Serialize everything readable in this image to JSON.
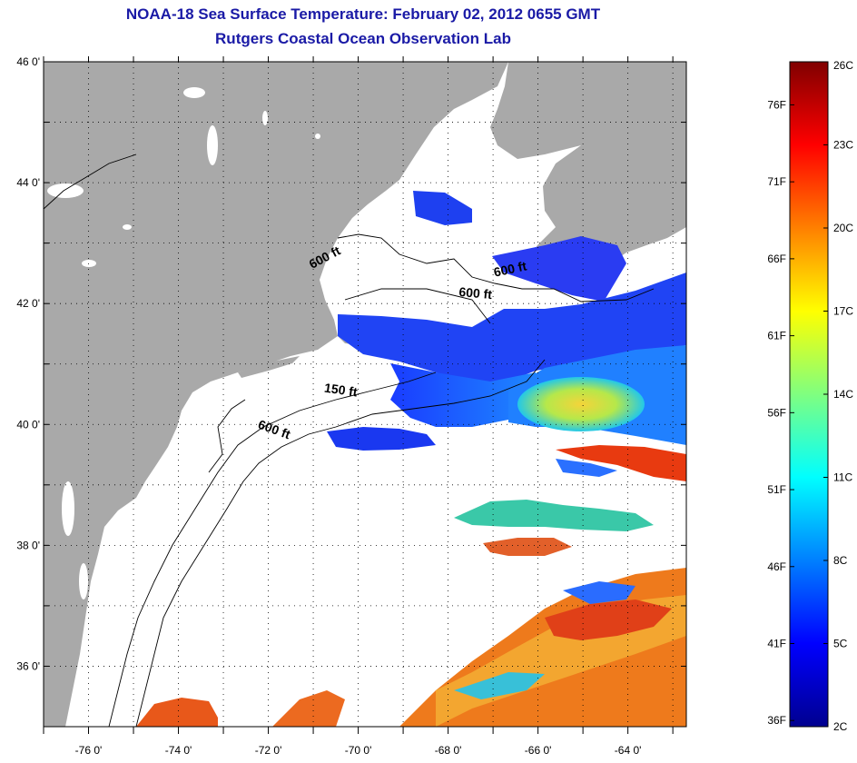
{
  "title": {
    "line1": "NOAA-18 Sea Surface Temperature:  February 02, 2012 0655 GMT",
    "line2": "Rutgers Coastal Ocean Observation Lab"
  },
  "map": {
    "lon_range": [
      -77,
      -62.7
    ],
    "lat_range": [
      35,
      46
    ],
    "lat_ticks": [
      {
        "value": 46,
        "label": "46 0'"
      },
      {
        "value": 44,
        "label": "44 0'"
      },
      {
        "value": 42,
        "label": "42 0'"
      },
      {
        "value": 40,
        "label": "40 0'"
      },
      {
        "value": 38,
        "label": "38 0'"
      },
      {
        "value": 36,
        "label": "36 0'"
      }
    ],
    "lon_ticks": [
      {
        "value": -76,
        "label": "-76 0'"
      },
      {
        "value": -74,
        "label": "-74 0'"
      },
      {
        "value": -72,
        "label": "-72 0'"
      },
      {
        "value": -70,
        "label": "-70 0'"
      },
      {
        "value": -68,
        "label": "-68 0'"
      },
      {
        "value": -66,
        "label": "-66 0'"
      },
      {
        "value": -64,
        "label": "-64 0'"
      }
    ],
    "contour_labels": [
      {
        "text": "600 ft",
        "lon": -70.7,
        "lat": 42.7,
        "angle": 28
      },
      {
        "text": "600 ft",
        "lon": -66.6,
        "lat": 42.5,
        "angle": 12
      },
      {
        "text": "600 ft",
        "lon": -67.4,
        "lat": 42.1,
        "angle": -5
      },
      {
        "text": "150 ft",
        "lon": -70.4,
        "lat": 40.5,
        "angle": -8
      },
      {
        "text": "600 ft",
        "lon": -71.9,
        "lat": 39.85,
        "angle": -20
      }
    ],
    "colors": {
      "land": "#a9a9a9",
      "ocean_no_data": "#ffffff"
    }
  },
  "colorbar": {
    "min_c": 2,
    "max_c": 26,
    "celsius_ticks": [
      {
        "value": 26,
        "label": "26C"
      },
      {
        "value": 23,
        "label": "23C"
      },
      {
        "value": 20,
        "label": "20C"
      },
      {
        "value": 17,
        "label": "17C"
      },
      {
        "value": 14,
        "label": "14C"
      },
      {
        "value": 11,
        "label": "11C"
      },
      {
        "value": 8,
        "label": "8C"
      },
      {
        "value": 5,
        "label": "5C"
      },
      {
        "value": 2,
        "label": "2C"
      }
    ],
    "fahrenheit_ticks": [
      {
        "value": 76,
        "label": "76F"
      },
      {
        "value": 71,
        "label": "71F"
      },
      {
        "value": 66,
        "label": "66F"
      },
      {
        "value": 61,
        "label": "61F"
      },
      {
        "value": 56,
        "label": "56F"
      },
      {
        "value": 51,
        "label": "51F"
      },
      {
        "value": 46,
        "label": "46F"
      },
      {
        "value": 41,
        "label": "41F"
      },
      {
        "value": 36,
        "label": "36F"
      }
    ],
    "colormap": "jet"
  }
}
